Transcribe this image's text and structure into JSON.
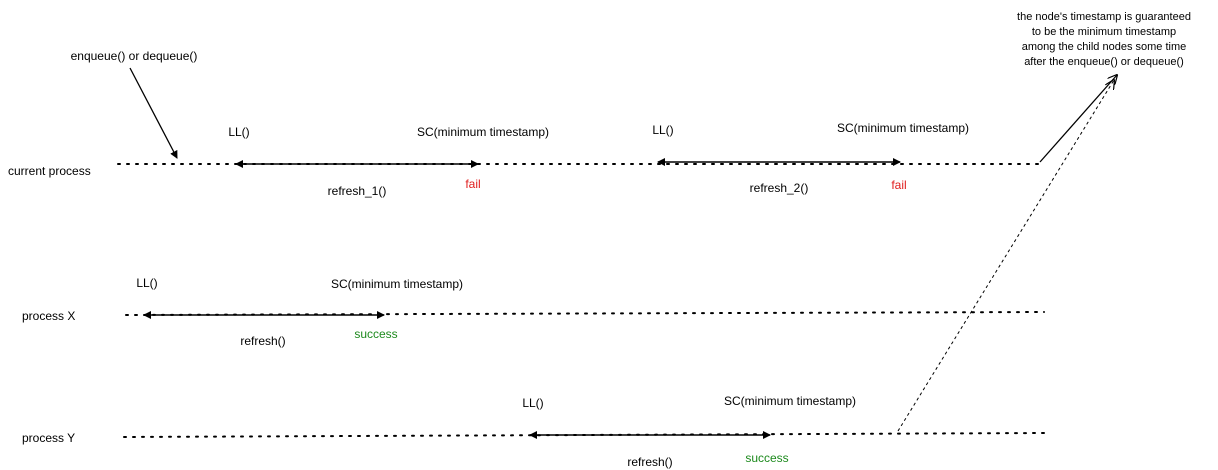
{
  "colors": {
    "line": "#000000",
    "fail": "#e02020",
    "success": "#1d8a1d"
  },
  "processes": {
    "current": "current process",
    "x": "process X",
    "y": "process Y"
  },
  "trigger_label": "enqueue() or dequeue()",
  "note_lines": [
    "the node's timestamp is guaranteed",
    "to be the minimum timestamp",
    "among the child nodes some time",
    "after the enqueue() or dequeue()"
  ],
  "current": {
    "refresh1": {
      "ll": "LL()",
      "sc": "SC(minimum timestamp)",
      "name": "refresh_1()",
      "result": "fail"
    },
    "refresh2": {
      "ll": "LL()",
      "sc": "SC(minimum timestamp)",
      "name": "refresh_2()",
      "result": "fail"
    }
  },
  "x": {
    "ll": "LL()",
    "sc": "SC(minimum timestamp)",
    "name": "refresh()",
    "result": "success"
  },
  "y": {
    "ll": "LL()",
    "sc": "SC(minimum timestamp)",
    "name": "refresh()",
    "result": "success"
  }
}
